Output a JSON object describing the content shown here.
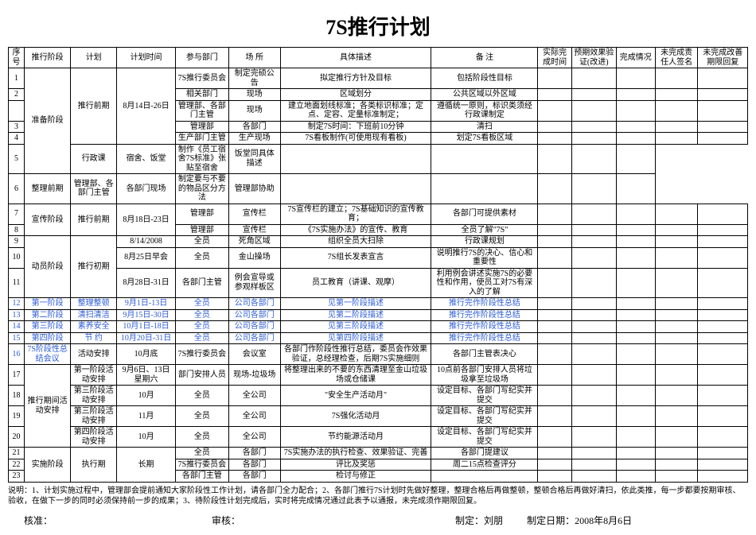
{
  "title": "7S推行计划",
  "columns": [
    "序号",
    "推行阶段",
    "计划",
    "计划时间",
    "参与部门",
    "场  所",
    "具体描述",
    "备  注",
    "实际完成时间",
    "预期效果验证(改进)",
    "完成情况",
    "未完成责任人签名",
    "未完成改善期限回复"
  ],
  "rows": [
    {
      "seq": "1",
      "stage": "准备阶段",
      "stage_rs": 6,
      "plan": "推行前期",
      "plan_rs": 5,
      "time": "8月14日-26日",
      "time_rs": 5,
      "dept": "7S推行委员会",
      "place": "制定完硕公告",
      "desc": "拟定推行方针及目标",
      "note": "包括阶段性目标"
    },
    {
      "seq": "2",
      "seq_rs": 1,
      "dept": "相关部门",
      "place": "现场",
      "desc": "区域划分",
      "note": "公共区域以外区域"
    },
    {
      "seq": "",
      "dept": "管理部、各部门主管",
      "place": "现场",
      "desc": "建立地面划线标准；各类标识标准；定点、定容、定量标准制定；",
      "note": "遵循统一原则，标识类须经行政课制定"
    },
    {
      "seq": "3",
      "dept": "管理部",
      "place": "各部门",
      "desc": "制定7S时间：下班前10分钟",
      "note": "清扫"
    },
    {
      "seq": "4",
      "dept": "生产部门主管",
      "place": "生产现场",
      "desc": "7S看板制作(可使用现有看板)",
      "note": "划定7S看板区域"
    },
    {
      "seq": "5",
      "dept": "行政课",
      "place": "宿舍、饭堂",
      "desc": "制作《员工宿舍7S标准》张贴至宿舍",
      "note": "饭堂同具体描述"
    },
    {
      "seq": "6",
      "plan": "整理前期",
      "dept": "管理部、各部门主管",
      "place": "各部门现场",
      "desc": "制定要与不要的物品区分方法",
      "note": "管理部协助"
    },
    {
      "seq": "7",
      "stage": "宣传阶段",
      "stage_rs": 2,
      "plan": "推行前期",
      "plan_rs": 2,
      "time": "8月18日-23日",
      "time_rs": 2,
      "dept": "管理部",
      "place": "宣传栏",
      "desc": "7S宣传栏的建立；7S基础知识的宣传教育；",
      "note": "各部门可提供素材"
    },
    {
      "seq": "8",
      "dept": "管理部",
      "place": "宣传栏",
      "desc": "《7S实施办法》的宣传、教育",
      "note": "全员了解\"7S\""
    },
    {
      "seq": "9",
      "stage": "动员阶段",
      "stage_rs": 3,
      "plan": "推行初期",
      "plan_rs": 3,
      "time": "8/14/2008",
      "dept": "全员",
      "place": "死角区域",
      "desc": "组织全员大扫除",
      "note": "行政课规划"
    },
    {
      "seq": "10",
      "time": "8月25日早会",
      "dept": "全员",
      "place": "金山操场",
      "desc": "7S组长发表宣言",
      "note": "说明推行7S的决心、信心和重要性"
    },
    {
      "seq": "11",
      "time": "8月28日-31日",
      "dept": "各部门主管",
      "place": "例会宣导或参观样板区",
      "desc": "员工教育（讲课、观摩）",
      "note": "利用例会讲述实施7S的必要性和作用，使员工对7S有深入的了解"
    },
    {
      "seq": "12",
      "stage": "第一阶段",
      "plan": "整理整顿",
      "time": "9月1日-13日",
      "dept": "全员",
      "place": "公司各部门",
      "desc": "见第一阶段描述",
      "note": "推行完作阶段性总结",
      "blue": true
    },
    {
      "seq": "13",
      "stage": "第二阶段",
      "plan": "清扫清洁",
      "time": "9月15日-30日",
      "dept": "全员",
      "place": "公司各部门",
      "desc": "见第二阶段描述",
      "note": "推行完作阶段性总结",
      "blue": true
    },
    {
      "seq": "14",
      "stage": "第三阶段",
      "plan": "素养安全",
      "time": "10月1日-18日",
      "dept": "全员",
      "place": "公司各部门",
      "desc": "见第三阶段描述",
      "note": "推行完作阶段性总结",
      "blue": true
    },
    {
      "seq": "15",
      "stage": "第四阶段",
      "plan": "节  约",
      "time": "10月20日-31日",
      "dept": "全员",
      "place": "公司各部门",
      "desc": "见第四阶段描述",
      "note": "推行完作阶段性总结",
      "blue": true
    },
    {
      "seq": "16",
      "stage": "7S阶段性总结会议",
      "plan": "活动安排",
      "time": "10月底",
      "dept": "7S推行委员会",
      "place": "会议室",
      "desc": "各部门作阶段性推行总结，委员会作效果验证，总经理检查，后期7S实施细则",
      "note": "各部门主管表决心",
      "stage_blue": true
    },
    {
      "seq": "17",
      "stage": "推行期间活动安排",
      "stage_rs": 4,
      "plan": "第一阶段活动安排",
      "time": "9月6日、13日星期六",
      "dept": "部门安排人员",
      "place": "现场-垃圾场",
      "desc": "将整理出来的不要的东西清理至金山垃圾场或仓储课",
      "note": "10点前各部门安排人员将垃圾拿至垃圾场"
    },
    {
      "seq": "18",
      "plan": "第三阶段活动安排",
      "time": "10月",
      "dept": "全员",
      "place": "全公司",
      "desc": "\"安全生产活动月\"",
      "note": "设定目标、各部门写纪实并提交"
    },
    {
      "seq": "19",
      "plan": "第三阶段活动安排",
      "time": "11月",
      "dept": "全员",
      "place": "全公司",
      "desc": "7S强化活动月",
      "note": "设定目标、各部门写纪实并提交"
    },
    {
      "seq": "20",
      "plan": "第四阶段活动安排",
      "time": "10月",
      "dept": "全员",
      "place": "全公司",
      "desc": "节约能源活动月",
      "note": "设定目标、各部门写纪实并提交"
    },
    {
      "seq": "21",
      "stage": "实施阶段",
      "stage_rs": 3,
      "plan": "执行期",
      "plan_rs": 3,
      "time": "长期",
      "time_rs": 3,
      "dept": "全员",
      "place": "各部门",
      "desc": "7S实施办法的执行检查、效果验证、完善",
      "note": "各部门提建议"
    },
    {
      "seq": "22",
      "dept": "7S推行委员会",
      "place": "各部门",
      "desc": "评比及奖惩",
      "note": "周二15点检查评分"
    },
    {
      "seq": "23",
      "dept": "各部门主管",
      "place": "各部门",
      "desc": "检讨与修正",
      "note": ""
    }
  ],
  "footnote": "说明：1、计划实施过程中，管理部会提前通知大家阶段性工作计划，请各部门全力配合；2、各部门推行7S计划时先做好整理，整理合格后再做整顿，整顿合格后再做好清扫，依此类推，每一步都要按期审核、验收，在做下一步的同时必须保持前一步的成果；3、待阶段性计划完成后，实时将完成情况通过此表予以通报，未完成须作期限回复。",
  "footer": {
    "approve": "核准：",
    "review": "审核：",
    "author_label": "制定：",
    "author": "刘朋",
    "date_label": "制定日期：",
    "date": "2008年8月6日"
  }
}
